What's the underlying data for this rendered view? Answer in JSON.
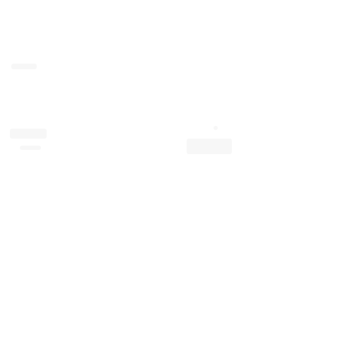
{
  "screen": {
    "background": "#ffffff"
  }
}
